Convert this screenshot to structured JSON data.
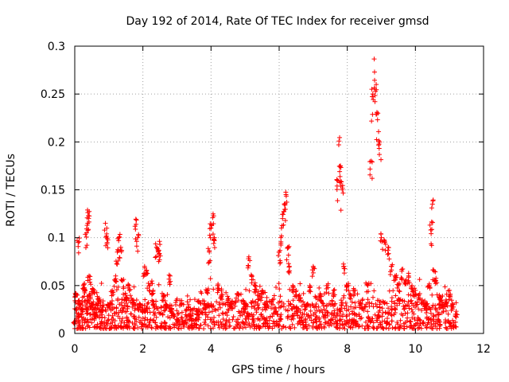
{
  "chart_data": {
    "type": "scatter",
    "title": "Day 192 of 2014, Rate Of TEC Index for receiver gmsd",
    "xlabel": "GPS time / hours",
    "ylabel": "ROTI / TECUs",
    "xlim": [
      0,
      12
    ],
    "ylim": [
      0,
      0.3
    ],
    "xticks": [
      0,
      2,
      4,
      6,
      8,
      10,
      12
    ],
    "yticks": [
      0,
      0.05,
      0.1,
      0.15,
      0.2,
      0.25,
      0.3
    ],
    "xtick_labels": [
      "0",
      "2",
      "4",
      "6",
      "8",
      "10",
      "12"
    ],
    "ytick_labels": [
      "0",
      "0.05",
      "0.1",
      "0.15",
      "0.2",
      "0.25",
      "0.3"
    ],
    "grid": true,
    "marker": "+",
    "color": "#ff0000",
    "series": [
      {
        "name": "ROTI",
        "x": [
          0.0,
          0.05,
          0.1,
          0.12,
          0.15,
          0.2,
          0.25,
          0.3,
          0.35,
          0.38,
          0.4,
          0.42,
          0.45,
          0.5,
          0.55,
          0.6,
          0.7,
          0.8,
          0.9,
          0.95,
          1.0,
          1.1,
          1.2,
          1.25,
          1.3,
          1.35,
          1.4,
          1.5,
          1.6,
          1.7,
          1.8,
          1.85,
          1.9,
          2.0,
          2.05,
          2.1,
          2.2,
          2.3,
          2.4,
          2.45,
          2.5,
          2.6,
          2.7,
          2.8,
          2.85,
          2.9,
          3.0,
          3.2,
          3.4,
          3.6,
          3.8,
          3.9,
          3.95,
          4.0,
          4.05,
          4.1,
          4.2,
          4.3,
          4.5,
          4.6,
          4.8,
          5.0,
          5.1,
          5.2,
          5.3,
          5.4,
          5.5,
          5.6,
          5.8,
          6.0,
          6.05,
          6.1,
          6.15,
          6.2,
          6.25,
          6.3,
          6.4,
          6.5,
          6.6,
          6.8,
          6.9,
          7.0,
          7.2,
          7.4,
          7.6,
          7.7,
          7.75,
          7.8,
          7.85,
          7.9,
          8.0,
          8.1,
          8.2,
          8.4,
          8.6,
          8.7,
          8.75,
          8.8,
          8.85,
          8.9,
          8.95,
          9.0,
          9.1,
          9.2,
          9.3,
          9.4,
          9.5,
          9.6,
          9.7,
          9.8,
          9.9,
          10.0,
          10.1,
          10.2,
          10.3,
          10.4,
          10.45,
          10.5,
          10.55,
          10.6,
          10.7,
          10.8,
          10.9,
          11.0,
          11.1,
          11.2
        ],
        "y": [
          0.012,
          0.04,
          0.095,
          0.02,
          0.03,
          0.025,
          0.05,
          0.045,
          0.105,
          0.115,
          0.123,
          0.06,
          0.04,
          0.03,
          0.045,
          0.02,
          0.035,
          0.025,
          0.115,
          0.095,
          0.03,
          0.045,
          0.06,
          0.085,
          0.1,
          0.09,
          0.055,
          0.04,
          0.05,
          0.035,
          0.114,
          0.1,
          0.03,
          0.025,
          0.07,
          0.065,
          0.05,
          0.045,
          0.09,
          0.085,
          0.093,
          0.04,
          0.03,
          0.06,
          0.025,
          0.02,
          0.015,
          0.012,
          0.018,
          0.02,
          0.03,
          0.045,
          0.085,
          0.11,
          0.121,
          0.1,
          0.05,
          0.04,
          0.035,
          0.03,
          0.04,
          0.03,
          0.078,
          0.06,
          0.05,
          0.04,
          0.045,
          0.03,
          0.035,
          0.085,
          0.1,
          0.12,
          0.135,
          0.145,
          0.09,
          0.07,
          0.05,
          0.045,
          0.04,
          0.03,
          0.05,
          0.07,
          0.04,
          0.05,
          0.045,
          0.16,
          0.197,
          0.175,
          0.15,
          0.07,
          0.05,
          0.04,
          0.045,
          0.03,
          0.05,
          0.18,
          0.25,
          0.273,
          0.26,
          0.23,
          0.2,
          0.1,
          0.095,
          0.09,
          0.07,
          0.06,
          0.05,
          0.065,
          0.055,
          0.06,
          0.05,
          0.045,
          0.04,
          0.035,
          0.03,
          0.05,
          0.108,
          0.135,
          0.065,
          0.055,
          0.04,
          0.03,
          0.035,
          0.045,
          0.03,
          0.02
        ],
        "baseline_band": [
          0.005,
          0.035
        ]
      }
    ]
  }
}
